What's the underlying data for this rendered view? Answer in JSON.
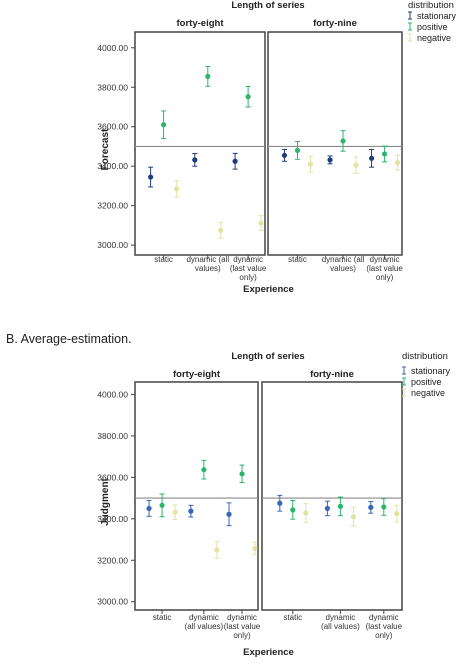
{
  "section_b_label": "B. Average-estimation.",
  "colors": {
    "stationary": "#1f3d7a",
    "stationary_b": "#3a64b8",
    "positive": "#2db56d",
    "negative": "#e3e3a4",
    "reference_line": "#8a8a8a",
    "panel_border": "#444444"
  },
  "chart_data": [
    {
      "type": "scatter",
      "title": "Length of series",
      "panels": [
        "forty-eight",
        "forty-nine"
      ],
      "categories": [
        "static",
        "dynamic (all values)",
        "dynamic (last value only)"
      ],
      "category_lines": [
        [
          "static"
        ],
        [
          "dynamic (all",
          "values)"
        ],
        [
          "dynamic",
          "(last value",
          "only)"
        ]
      ],
      "xlabel": "Experience",
      "ylabel": "Forecast",
      "ylim": [
        2950,
        4080
      ],
      "yticks": [
        "3000.00",
        "3200.00",
        "3400.00",
        "3600.00",
        "3800.00",
        "4000.00"
      ],
      "reference_value": 3500,
      "legend_title": "distribution",
      "legend_position": "top-right",
      "series": [
        {
          "name": "stationary",
          "color_key": "stationary",
          "values": [
            [
              3345,
              3432,
              3425
            ],
            [
              3455,
              3432,
              3440
            ]
          ],
          "errors": [
            [
              50,
              32,
              40
            ],
            [
              30,
              20,
              45
            ]
          ]
        },
        {
          "name": "positive",
          "color_key": "positive",
          "values": [
            [
              3610,
              3855,
              3752
            ],
            [
              3480,
              3528,
              3462
            ]
          ],
          "errors": [
            [
              70,
              50,
              52
            ],
            [
              45,
              52,
              40
            ]
          ]
        },
        {
          "name": "negative",
          "color_key": "negative",
          "values": [
            [
              3285,
              3075,
              3112
            ],
            [
              3410,
              3405,
              3418
            ]
          ],
          "errors": [
            [
              42,
              40,
              38
            ],
            [
              40,
              42,
              38
            ]
          ]
        }
      ]
    },
    {
      "type": "scatter",
      "title": "Length of series",
      "panels": [
        "forty-eight",
        "forty-nine"
      ],
      "categories": [
        "static",
        "dynamic (all values)",
        "dynamic (last value only)"
      ],
      "category_lines": [
        [
          "static"
        ],
        [
          "dynamic",
          "(all values)"
        ],
        [
          "dynamic",
          "(last value",
          "only)"
        ]
      ],
      "xlabel": "Experience",
      "ylabel": "Judgment",
      "ylim": [
        2960,
        4060
      ],
      "yticks": [
        "3000.00",
        "3200.00",
        "3400.00",
        "3600.00",
        "3800.00",
        "4000.00"
      ],
      "reference_value": 3500,
      "legend_title": "distribution",
      "legend_position": "top-right",
      "series": [
        {
          "name": "stationary",
          "color_key": "stationary_b",
          "values": [
            [
              3450,
              3437,
              3422
            ],
            [
              3475,
              3450,
              3455
            ]
          ],
          "errors": [
            [
              38,
              28,
              55
            ],
            [
              38,
              35,
              28
            ]
          ]
        },
        {
          "name": "positive",
          "color_key": "positive",
          "values": [
            [
              3465,
              3637,
              3617
            ],
            [
              3443,
              3460,
              3457
            ]
          ],
          "errors": [
            [
              55,
              45,
              42
            ],
            [
              45,
              45,
              40
            ]
          ]
        },
        {
          "name": "negative",
          "color_key": "negative",
          "values": [
            [
              3432,
              3250,
              3257
            ],
            [
              3428,
              3410,
              3425
            ]
          ],
          "errors": [
            [
              35,
              40,
              30
            ],
            [
              45,
              45,
              40
            ]
          ]
        }
      ]
    }
  ]
}
